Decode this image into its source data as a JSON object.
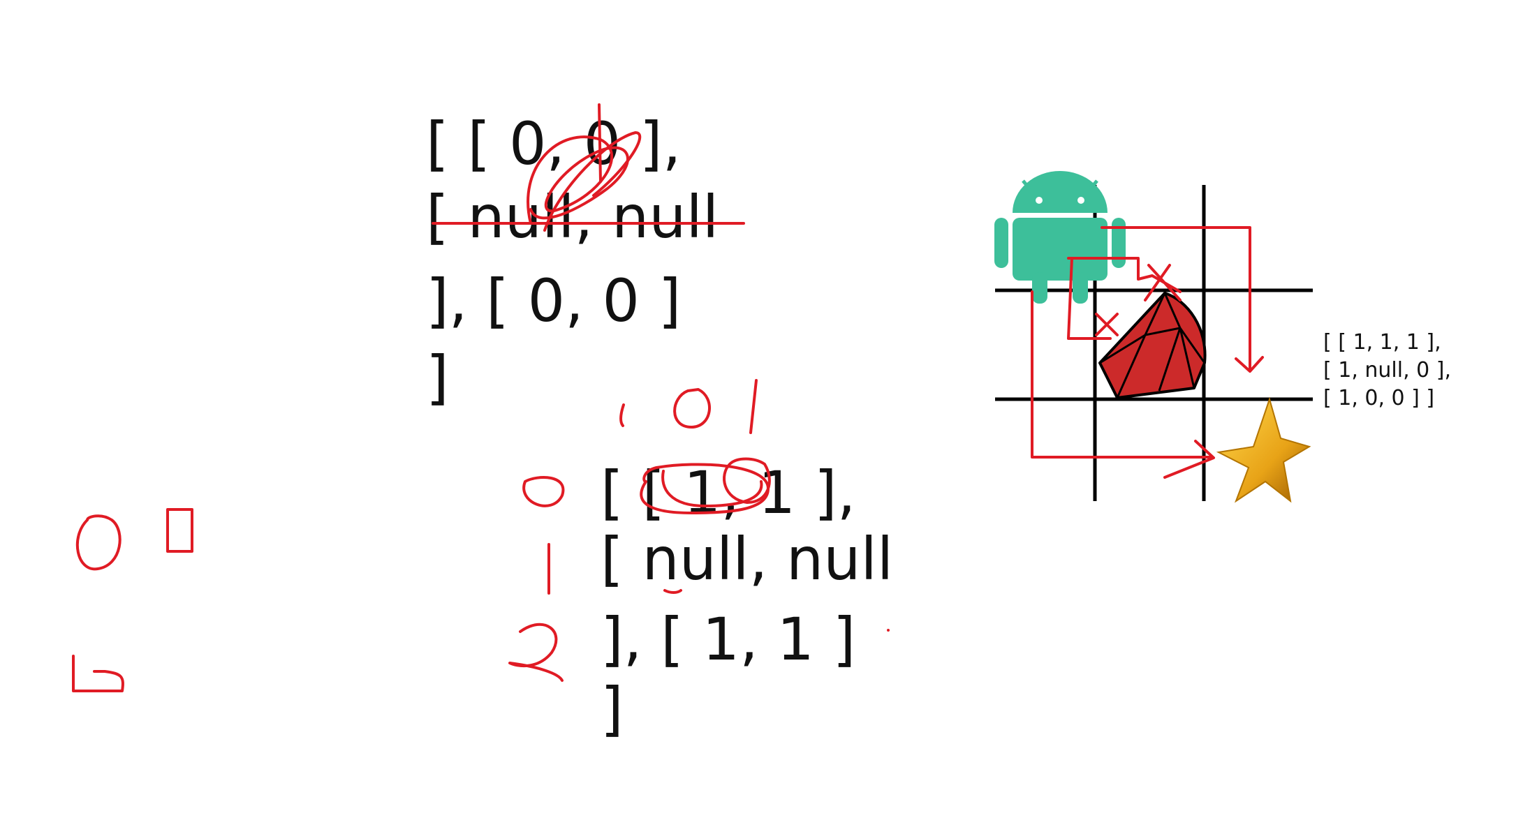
{
  "whiteboard": {
    "array_a": {
      "lines": [
        "[ [ 0, 0 ],",
        "[ null, null",
        "], [ 0, 0 ]",
        "]"
      ]
    },
    "array_b": {
      "lines": [
        "[ [ 1, 1 ],",
        "[ null, null",
        "], [ 1, 1 ]",
        "]"
      ],
      "row_indices": [
        "0",
        "1",
        "2"
      ],
      "column_indices": [
        "0",
        "1"
      ]
    },
    "array_c": {
      "lines": [
        "[ [ 1, 1, 1 ],",
        "[ 1, null, 0 ],",
        "[ 1, 0, 0 ] ]"
      ]
    },
    "margin_marks": [
      "0",
      "0",
      "0"
    ]
  },
  "grid": {
    "rows": 3,
    "cols": 3,
    "start": "android-icon",
    "obstacle": "ruby-icon",
    "goal": "star-icon"
  },
  "colors": {
    "ink_red": "#e01b24",
    "ink_black": "#111111",
    "android_green": "#3ddc84",
    "android_teal": "#3dbf9a",
    "ruby_red": "#cc2a2a",
    "star_gold": "#e8a317"
  }
}
